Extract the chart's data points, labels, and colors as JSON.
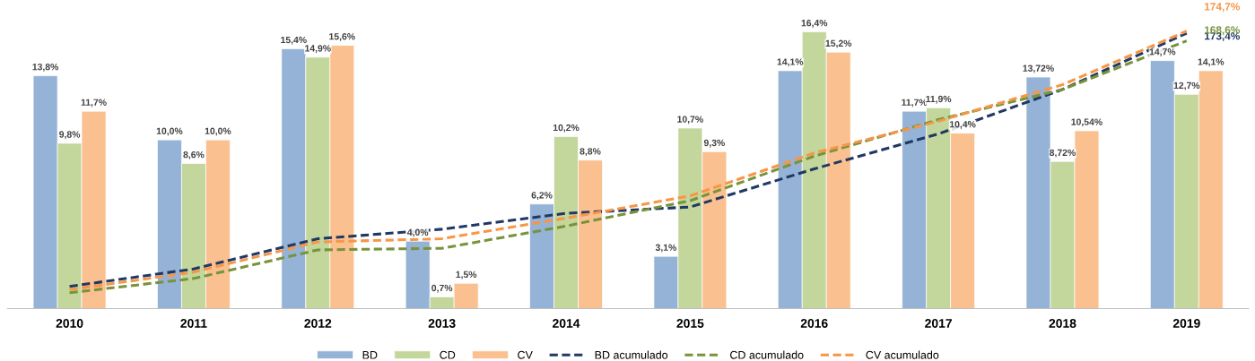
{
  "chart_data": {
    "type": "bar",
    "categories": [
      "2010",
      "2011",
      "2012",
      "2013",
      "2014",
      "2015",
      "2016",
      "2017",
      "2018",
      "2019"
    ],
    "tick_labels": "x",
    "grid": false,
    "legend": "bottom",
    "series": [
      {
        "name": "BD",
        "color": "#95b3d7",
        "values": [
          13.8,
          10.0,
          15.4,
          4.0,
          6.2,
          3.1,
          14.1,
          11.7,
          13.72,
          14.7
        ],
        "value_labels": [
          "13,8%",
          "10,0%",
          "15,4%",
          "4,0%",
          "6,2%",
          "3,1%",
          "14,1%",
          "11,7%",
          "13,72%",
          "14,7%"
        ]
      },
      {
        "name": "CD",
        "color": "#c3d69b",
        "values": [
          9.8,
          8.6,
          14.9,
          0.7,
          10.2,
          10.7,
          16.4,
          11.9,
          8.72,
          12.7
        ],
        "value_labels": [
          "9,8%",
          "8,6%",
          "14,9%",
          "0,7%",
          "10,2%",
          "10,7%",
          "16,4%",
          "11,9%",
          "8,72%",
          "12,7%"
        ]
      },
      {
        "name": "CV",
        "color": "#fac090",
        "values": [
          11.7,
          10.0,
          15.6,
          1.5,
          8.8,
          9.3,
          15.2,
          10.4,
          10.54,
          14.1
        ],
        "value_labels": [
          "11,7%",
          "10,0%",
          "15,6%",
          "1,5%",
          "8,8%",
          "9,3%",
          "15,2%",
          "10,4%",
          "10,54%",
          "14,1%"
        ]
      },
      {
        "name": "BD acumulado",
        "type": "line",
        "axis": "y2",
        "line_style": "dashed",
        "color": "#203864",
        "values": [
          14,
          25,
          44,
          50,
          60,
          64,
          88,
          110,
          138,
          173.4
        ],
        "value_labels": [
          null,
          null,
          null,
          null,
          null,
          null,
          null,
          null,
          null,
          "173,4%"
        ]
      },
      {
        "name": "CD acumulado",
        "type": "line",
        "axis": "y2",
        "line_style": "dashed",
        "color": "#77933c",
        "values": [
          10,
          19,
          37,
          38,
          52,
          68,
          96,
          119,
          138,
          168.6
        ],
        "value_labels": [
          null,
          null,
          null,
          null,
          null,
          null,
          null,
          null,
          null,
          "168,6%"
        ]
      },
      {
        "name": "CV acumulado",
        "type": "line",
        "axis": "y2",
        "line_style": "dashed",
        "color": "#f79646",
        "values": [
          12,
          23,
          42,
          44,
          57,
          71,
          98,
          118,
          141,
          174.7
        ],
        "value_labels": [
          null,
          null,
          null,
          null,
          null,
          null,
          null,
          null,
          null,
          "174,7%"
        ]
      }
    ]
  }
}
